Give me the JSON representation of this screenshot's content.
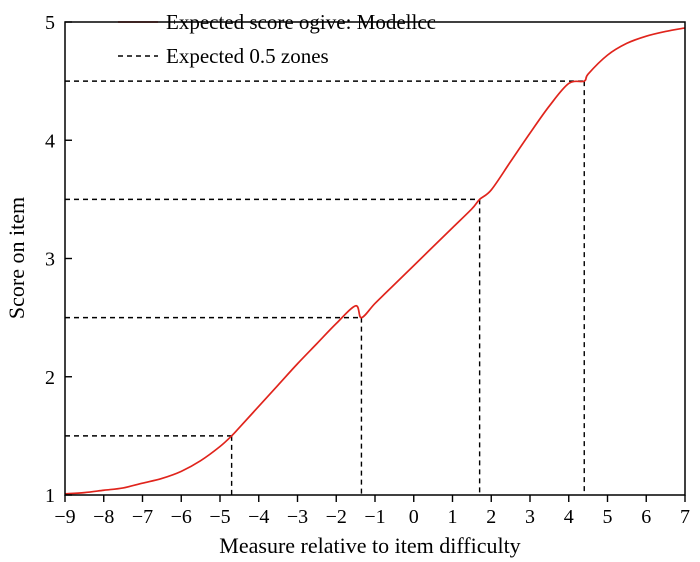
{
  "chart_data": {
    "type": "line",
    "title": "",
    "xlabel": "Measure relative to item difficulty",
    "ylabel": "Score on item",
    "xlim": [
      -9,
      7
    ],
    "ylim": [
      1,
      5
    ],
    "xticks": [
      -9,
      -8,
      -7,
      -6,
      -5,
      -4,
      -3,
      -2,
      -1,
      0,
      1,
      2,
      3,
      4,
      5,
      6,
      7
    ],
    "yticks": [
      1,
      2,
      3,
      4,
      5
    ],
    "grid": false,
    "legend_position": "top-left",
    "series": [
      {
        "name": "Expected score ogive: Modellcc",
        "style": "solid",
        "color": "#e0241c",
        "x": [
          -9,
          -8.5,
          -8,
          -7.5,
          -7,
          -6.5,
          -6,
          -5.5,
          -5,
          -4.7,
          -4.5,
          -4,
          -3.5,
          -3,
          -2.5,
          -2,
          -1.5,
          -1.35,
          -1,
          -0.5,
          0,
          0.5,
          1,
          1.5,
          1.7,
          2,
          2.5,
          3,
          3.5,
          4,
          4.4,
          4.5,
          5,
          5.5,
          6,
          6.5,
          7
        ],
        "y": [
          1.01,
          1.02,
          1.04,
          1.06,
          1.1,
          1.14,
          1.2,
          1.29,
          1.41,
          1.5,
          1.57,
          1.75,
          1.93,
          2.11,
          2.28,
          2.45,
          2.6,
          2.5,
          2.62,
          2.78,
          2.94,
          3.1,
          3.26,
          3.42,
          3.5,
          3.58,
          3.82,
          4.06,
          4.29,
          4.48,
          4.5,
          4.56,
          4.72,
          4.82,
          4.88,
          4.92,
          4.95
        ]
      },
      {
        "name": "Expected 0.5 zones",
        "style": "dashed",
        "color": "#000000",
        "segments": [
          {
            "x": -4.7,
            "y": 1.5
          },
          {
            "x": -1.35,
            "y": 2.5
          },
          {
            "x": 1.7,
            "y": 3.5
          },
          {
            "x": 4.4,
            "y": 4.5
          }
        ]
      }
    ]
  }
}
